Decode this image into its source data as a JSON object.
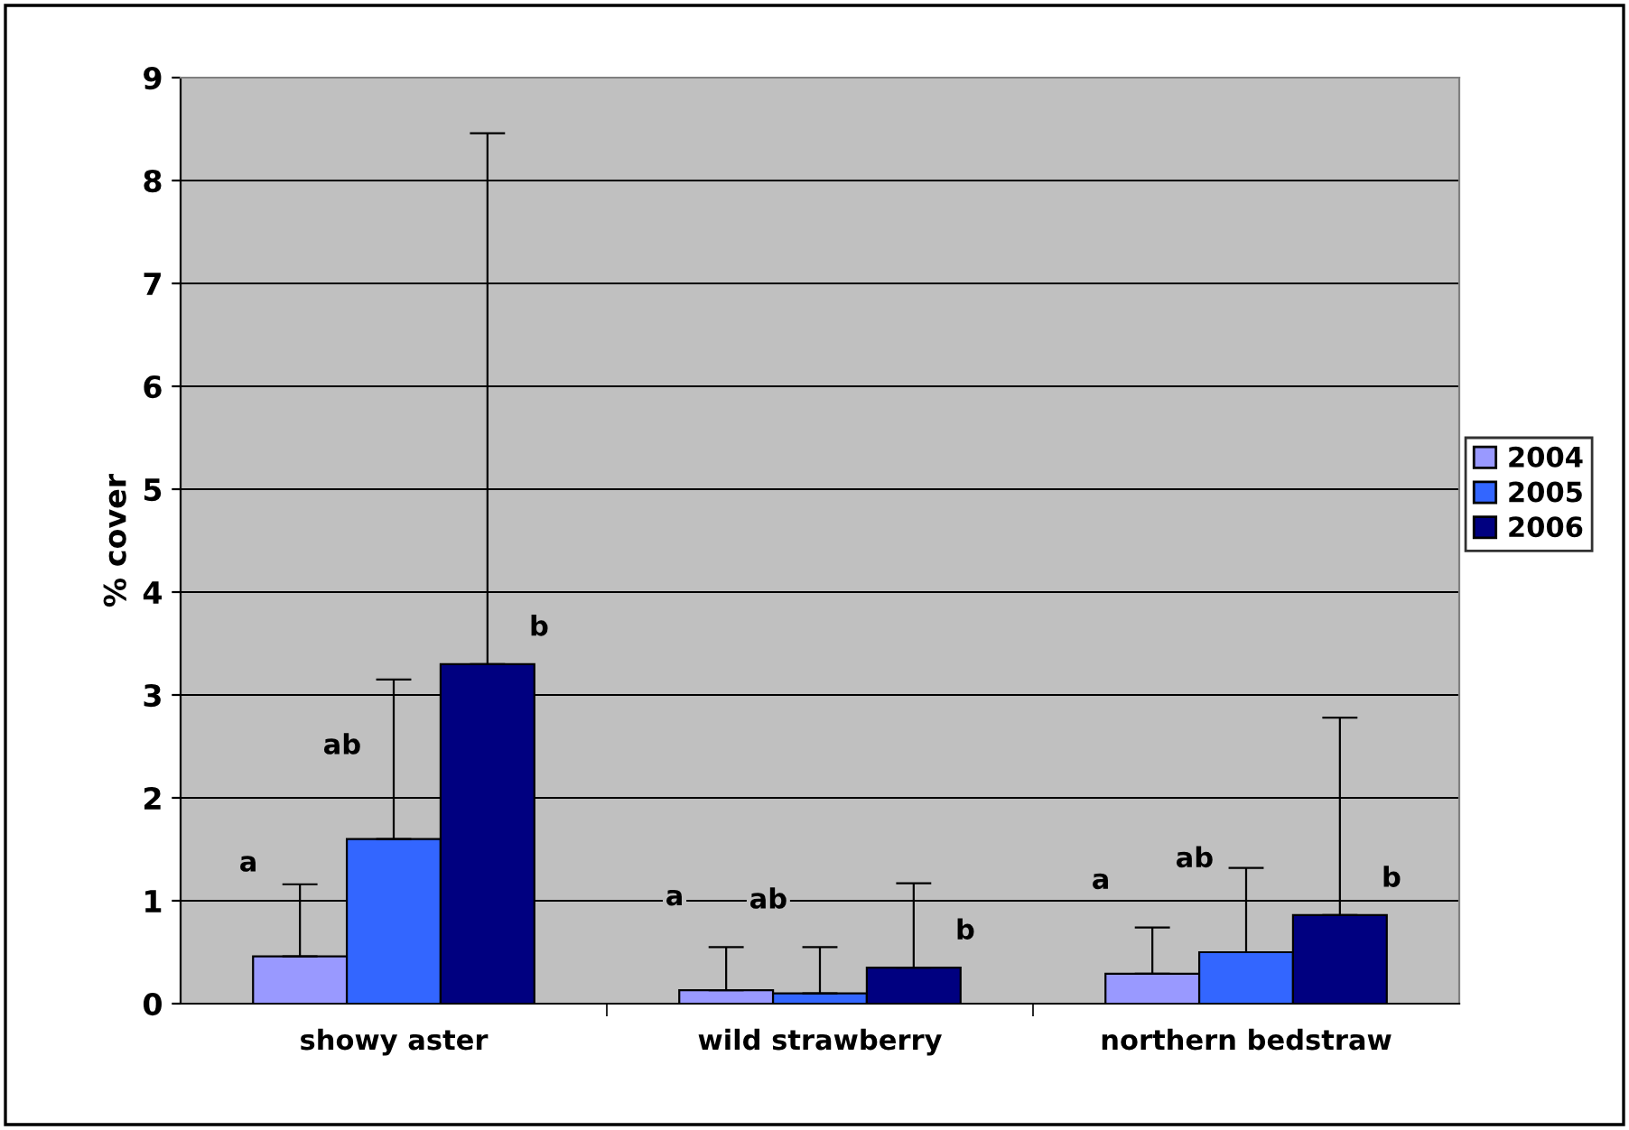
{
  "chart_data": {
    "type": "bar",
    "ylabel": "% cover",
    "categories": [
      "showy aster",
      "wild strawberry",
      "northern bedstraw"
    ],
    "series": [
      {
        "name": "2004",
        "color": "#9999ff",
        "values": [
          0.46,
          0.13,
          0.29
        ],
        "errors": [
          [
            0.46,
            1.16
          ],
          [
            0.13,
            0.55
          ],
          [
            0.29,
            0.74
          ]
        ]
      },
      {
        "name": "2005",
        "color": "#3366ff",
        "values": [
          1.6,
          0.1,
          0.5
        ],
        "errors": [
          [
            1.6,
            3.15
          ],
          [
            0.1,
            0.55
          ],
          [
            0.5,
            1.32
          ]
        ]
      },
      {
        "name": "2006",
        "color": "#000080",
        "values": [
          3.3,
          0.35,
          0.86
        ],
        "errors": [
          [
            3.3,
            8.46
          ],
          [
            0.35,
            1.17
          ],
          [
            0.86,
            2.78
          ]
        ]
      }
    ],
    "ylim": [
      0,
      9
    ],
    "yticks": [
      0,
      1,
      2,
      3,
      4,
      5,
      6,
      7,
      8,
      9
    ],
    "grid": "y",
    "legend": "right",
    "annotations": [
      "a",
      "ab",
      "b",
      "a",
      "ab",
      "b",
      "a",
      "ab",
      "b"
    ]
  }
}
